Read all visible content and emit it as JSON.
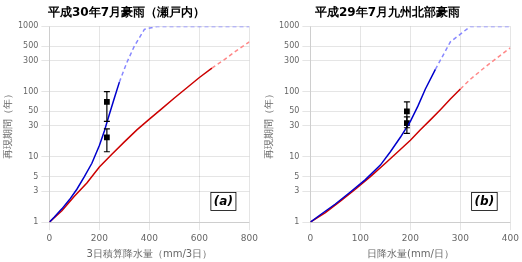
{
  "chart_data": [
    {
      "type": "line",
      "title": "平成30年7月豪雨（瀬戸内）",
      "xlabel": "3日積算降水量（mm/3日）",
      "ylabel": "再現期間（年）",
      "log": "y",
      "grid": true,
      "xlim": [
        0,
        800
      ],
      "ylim": [
        1,
        1000
      ],
      "xticks": [
        0,
        200,
        400,
        600,
        800
      ],
      "yticks": [
        1,
        3,
        5,
        10,
        30,
        50,
        100,
        300,
        500,
        1000
      ],
      "annotations": [
        "(a)"
      ],
      "series": [
        {
          "color": "#0000CC",
          "line_style": "solid",
          "x": [
            0,
            20,
            50,
            80,
            110,
            140,
            170,
            200,
            220,
            240,
            260,
            280
          ],
          "values": [
            1,
            1.2,
            1.6,
            2.2,
            3.2,
            5,
            8,
            15,
            25,
            45,
            80,
            140
          ]
        },
        {
          "color": "#CC0000",
          "line_style": "solid",
          "x": [
            0,
            50,
            100,
            150,
            200,
            250,
            300,
            350,
            400,
            450,
            500,
            550,
            600,
            650
          ],
          "values": [
            1,
            1.5,
            2.5,
            4,
            7,
            11,
            17,
            26,
            38,
            55,
            80,
            115,
            165,
            230
          ]
        },
        {
          "color": "#8888FF",
          "line_style": "dashed",
          "x": [
            280,
            310,
            340,
            380,
            430,
            500,
            600,
            700,
            800
          ],
          "values": [
            140,
            280,
            500,
            900,
            1000,
            1000,
            1000,
            1000,
            1000
          ]
        },
        {
          "color": "#FF8888",
          "line_style": "dashed",
          "x": [
            650,
            700,
            750,
            800
          ],
          "values": [
            230,
            310,
            430,
            580
          ]
        },
        {
          "type": "scatter",
          "marker": "square",
          "color": "#000000",
          "x": [
            230
          ],
          "values": [
            70
          ],
          "yerr_low": [
            35
          ],
          "yerr_high": [
            30
          ]
        },
        {
          "type": "scatter",
          "marker": "square",
          "color": "#000000",
          "x": [
            230
          ],
          "values": [
            20
          ],
          "yerr_low": [
            8
          ],
          "yerr_high": [
            7
          ]
        }
      ]
    },
    {
      "type": "line",
      "title": "平成29年7月九州北部豪雨",
      "xlabel": "日降水量(mm/日）",
      "ylabel": "再現期間（年）",
      "log": "y",
      "grid": true,
      "xlim": [
        0,
        400
      ],
      "ylim": [
        1,
        1000
      ],
      "xticks": [
        0,
        100,
        200,
        300,
        400
      ],
      "yticks": [
        1,
        3,
        5,
        10,
        30,
        50,
        100,
        300,
        500,
        1000
      ],
      "annotations": [
        "(b)"
      ],
      "series": [
        {
          "color": "#0000CC",
          "line_style": "solid",
          "x": [
            0,
            20,
            50,
            80,
            110,
            140,
            160,
            180,
            200,
            215,
            230,
            250
          ],
          "values": [
            1,
            1.3,
            1.9,
            2.9,
            4.5,
            7.5,
            12,
            20,
            35,
            60,
            110,
            220
          ]
        },
        {
          "color": "#CC0000",
          "line_style": "solid",
          "x": [
            0,
            30,
            60,
            90,
            120,
            150,
            180,
            200,
            220,
            240,
            260,
            280,
            300
          ],
          "values": [
            1,
            1.4,
            2.1,
            3.2,
            5,
            8,
            13,
            18,
            26,
            37,
            53,
            77,
            110
          ]
        },
        {
          "color": "#8888FF",
          "line_style": "dashed",
          "x": [
            250,
            280,
            320,
            380,
            400
          ],
          "values": [
            220,
            580,
            1000,
            1000,
            1000
          ]
        },
        {
          "color": "#FF8888",
          "line_style": "dashed",
          "x": [
            300,
            320,
            350,
            380,
            400
          ],
          "values": [
            110,
            155,
            240,
            360,
            470
          ]
        },
        {
          "type": "scatter",
          "marker": "square",
          "color": "#000000",
          "x": [
            193
          ],
          "values": [
            50
          ],
          "yerr_low": [
            22
          ],
          "yerr_high": [
            20
          ]
        },
        {
          "type": "scatter",
          "marker": "square",
          "color": "#000000",
          "x": [
            193
          ],
          "values": [
            33
          ],
          "yerr_low": [
            10
          ],
          "yerr_high": [
            8
          ]
        }
      ]
    }
  ]
}
